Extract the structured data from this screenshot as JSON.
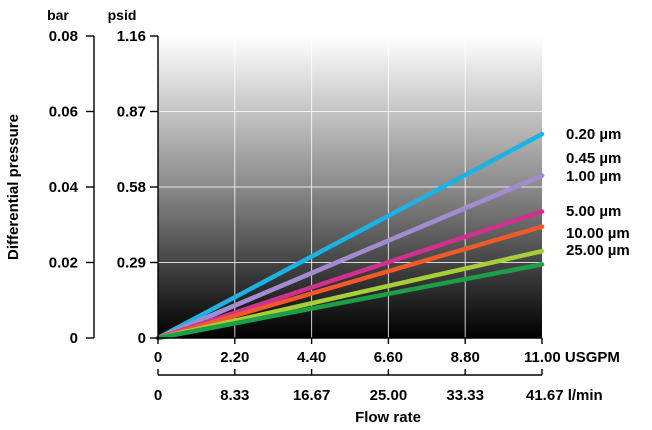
{
  "chart_data": {
    "type": "line",
    "xlabel": "Flow rate",
    "ylabel": "Differential pressure",
    "x_primary": {
      "unit": "USGPM",
      "ticks": [
        "0",
        "2.20",
        "4.40",
        "6.60",
        "8.80",
        "11.00"
      ],
      "range": [
        0,
        11.0
      ]
    },
    "x_secondary": {
      "unit": "l/min",
      "ticks": [
        "0",
        "8.33",
        "16.67",
        "25.00",
        "33.33",
        "41.67"
      ]
    },
    "y_primary": {
      "unit": "bar",
      "ticks": [
        "0",
        "0.02",
        "0.04",
        "0.06",
        "0.08"
      ],
      "range": [
        0,
        0.08
      ]
    },
    "y_secondary": {
      "unit": "psid",
      "ticks": [
        "0",
        "0.29",
        "0.58",
        "0.87",
        "1.16"
      ]
    },
    "grid": true,
    "legend_placement": "right, at line ends",
    "series": [
      {
        "name": "0.20 µm",
        "color": "#1ab3e6",
        "x": [
          0,
          11.0
        ],
        "y": [
          0,
          0.054
        ]
      },
      {
        "name": "0.45 µm",
        "color": "#a28cd0",
        "x": [
          0,
          11.0
        ],
        "y": [
          0,
          0.043
        ]
      },
      {
        "name": "1.00 µm",
        "color": "#a28cd0",
        "x": [
          0,
          11.0
        ],
        "y": [
          0,
          0.043
        ]
      },
      {
        "name": "5.00 µm",
        "color": "#d2308f",
        "x": [
          0,
          11.0
        ],
        "y": [
          0,
          0.0335
        ]
      },
      {
        "name": "10.00 µm",
        "color": "#f05a28",
        "x": [
          0,
          11.0
        ],
        "y": [
          0,
          0.0295
        ]
      },
      {
        "name": "25.00 µm",
        "color": "#a6ce39",
        "x": [
          0,
          11.0
        ],
        "y": [
          0,
          0.023
        ]
      },
      {
        "name": "",
        "color": "#1f9e4a",
        "x": [
          0,
          11.0
        ],
        "y": [
          0,
          0.0195
        ]
      }
    ]
  }
}
